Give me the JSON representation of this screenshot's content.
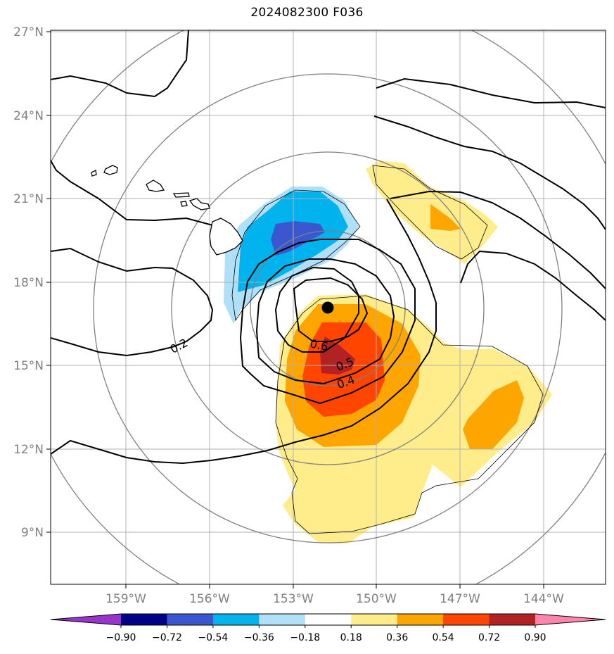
{
  "title": "2024082300 F036",
  "map": {
    "lat_ticks": [
      "27°N",
      "24°N",
      "21°N",
      "18°N",
      "15°N",
      "12°N",
      "9°N"
    ],
    "lon_ticks": [
      "159°W",
      "156°W",
      "153°W",
      "150°W",
      "147°W",
      "144°W"
    ],
    "extent": {
      "lon": [
        -161.7,
        -141.7
      ],
      "lat": [
        7.0,
        27.0
      ]
    },
    "gridlines": true,
    "center_marker": {
      "lon": -151.8,
      "lat": 17.1
    },
    "contour_labels": [
      "0.2",
      "0.6",
      "0.5",
      "0.4"
    ]
  },
  "colorbar": {
    "ticks": [
      "−0.90",
      "−0.72",
      "−0.54",
      "−0.36",
      "−0.18",
      "0.18",
      "0.36",
      "0.54",
      "0.72",
      "0.90"
    ],
    "colors": [
      "#9933cc",
      "#000088",
      "#3a57d0",
      "#00b2ee",
      "#b0e0f8",
      "#ffffff",
      "#ffec8b",
      "#ffa500",
      "#ff4500",
      "#b22222",
      "#ff85ac"
    ]
  }
}
